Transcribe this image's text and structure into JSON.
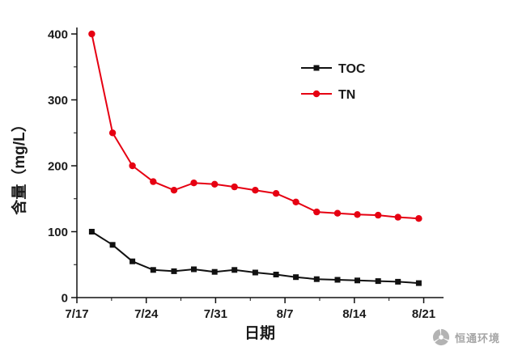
{
  "page": {
    "background": "#ffffff"
  },
  "chart_data": {
    "type": "line",
    "title": "",
    "xlabel": "日期",
    "ylabel": "含量（mg/L）",
    "ylim": [
      0,
      400
    ],
    "y_ticks": [
      0,
      100,
      200,
      300,
      400
    ],
    "y_minor_ticks": [
      50,
      150,
      250,
      350
    ],
    "x_axis_range_days": [
      0,
      37
    ],
    "x_ticks": [
      {
        "day": 0,
        "label": "7/17"
      },
      {
        "day": 7,
        "label": "7/24"
      },
      {
        "day": 14,
        "label": "7/31"
      },
      {
        "day": 21,
        "label": "8/7"
      },
      {
        "day": 28,
        "label": "8/14"
      },
      {
        "day": 35,
        "label": "8/21"
      }
    ],
    "x_minor_days": [
      3.5,
      10.5,
      17.5,
      24.5,
      31.5
    ],
    "grid": false,
    "legend_position": "inside-top-right",
    "axis_color": "#111111",
    "series": [
      {
        "name": "TOC",
        "color": "#111111",
        "marker": "square",
        "x_days": [
          1.5,
          3.6,
          5.6,
          7.7,
          9.8,
          11.8,
          13.9,
          15.9,
          18.0,
          20.1,
          22.1,
          24.2,
          26.3,
          28.3,
          30.4,
          32.4,
          34.5
        ],
        "values": [
          100,
          80,
          55,
          42,
          40,
          43,
          39,
          42,
          38,
          35,
          31,
          28,
          27,
          26,
          25,
          24,
          22
        ]
      },
      {
        "name": "TN",
        "color": "#e60012",
        "marker": "circle",
        "x_days": [
          1.5,
          3.6,
          5.6,
          7.7,
          9.8,
          11.8,
          13.9,
          15.9,
          18.0,
          20.1,
          22.1,
          24.2,
          26.3,
          28.3,
          30.4,
          32.4,
          34.5
        ],
        "values": [
          400,
          250,
          200,
          176,
          163,
          174,
          172,
          168,
          163,
          158,
          145,
          130,
          128,
          126,
          125,
          122,
          120
        ]
      }
    ]
  },
  "watermark": {
    "text": "恒通环境",
    "color": "#a6a6a6",
    "logo": "pinwheel-logo"
  }
}
